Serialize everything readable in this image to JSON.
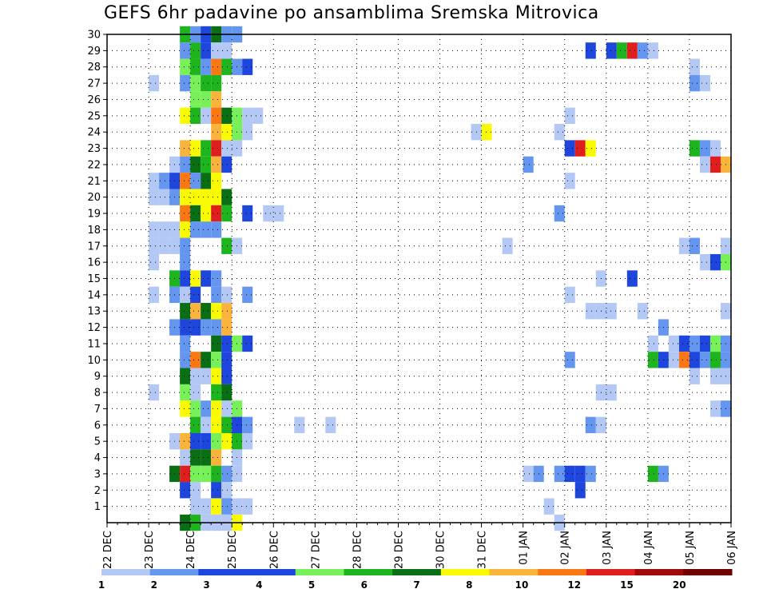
{
  "title": "GEFS 6hr padavine po ansamblima Sremska Mitrovica",
  "chart_data": {
    "type": "heatmap",
    "title": "GEFS 6hr padavine po ansamblima Sremska Mitrovica",
    "xlabel": "",
    "ylabel": "",
    "x_tick_labels": [
      "22 DEC",
      "23 DEC",
      "24 DEC",
      "25 DEC",
      "26 DEC",
      "27 DEC",
      "28 DEC",
      "29 DEC",
      "30 DEC",
      "31 DEC",
      "01 JAN",
      "02 JAN",
      "03 JAN",
      "04 JAN",
      "05 JAN",
      "06 JAN"
    ],
    "y_tick_labels": [
      "1",
      "2",
      "3",
      "4",
      "5",
      "6",
      "7",
      "8",
      "9",
      "10",
      "11",
      "12",
      "13",
      "14",
      "15",
      "16",
      "17",
      "18",
      "19",
      "20",
      "21",
      "22",
      "23",
      "24",
      "25",
      "26",
      "27",
      "28",
      "29",
      "30"
    ],
    "x_range": [
      "22 DEC",
      "06 JAN"
    ],
    "y_range": [
      0,
      30
    ],
    "time_step_hours": 6,
    "grid": true,
    "legend": {
      "placement": "bottom",
      "labels": [
        "1",
        "2",
        "3",
        "4",
        "5",
        "6",
        "7",
        "8",
        "10",
        "12",
        "15",
        "20"
      ],
      "colors": [
        "#b4c8f5",
        "#6496f0",
        "#1e46dc",
        "#1e46dc",
        "#78f05a",
        "#1eb41e",
        "#0a6e14",
        "#fafa00",
        "#fab43c",
        "#fa7814",
        "#e11e1e",
        "#a00a0a",
        "#6e0000"
      ]
    },
    "cells": [
      [
        30,
        "23 DEC 18",
        5
      ],
      [
        30,
        "24 DEC 00",
        1
      ],
      [
        30,
        "24 DEC 06",
        2
      ],
      [
        30,
        "24 DEC 12",
        6
      ],
      [
        30,
        "24 DEC 18",
        1
      ],
      [
        30,
        "25 DEC 00",
        1
      ],
      [
        29,
        "23 DEC 18",
        1
      ],
      [
        29,
        "24 DEC 00",
        5
      ],
      [
        29,
        "24 DEC 06",
        3
      ],
      [
        29,
        "24 DEC 12",
        0
      ],
      [
        29,
        "24 DEC 18",
        0
      ],
      [
        29,
        "02 JAN 12",
        2
      ],
      [
        29,
        "03 JAN 00",
        2
      ],
      [
        29,
        "03 JAN 06",
        5
      ],
      [
        29,
        "03 JAN 12",
        10
      ],
      [
        29,
        "03 JAN 18",
        1
      ],
      [
        29,
        "04 JAN 00",
        0
      ],
      [
        28,
        "23 DEC 18",
        4
      ],
      [
        28,
        "24 DEC 00",
        5
      ],
      [
        28,
        "24 DEC 06",
        1
      ],
      [
        28,
        "24 DEC 12",
        9
      ],
      [
        28,
        "24 DEC 18",
        5
      ],
      [
        28,
        "25 DEC 00",
        1
      ],
      [
        28,
        "25 DEC 06",
        2
      ],
      [
        28,
        "05 JAN 00",
        0
      ],
      [
        27,
        "23 DEC 00",
        0
      ],
      [
        27,
        "23 DEC 18",
        1
      ],
      [
        27,
        "24 DEC 00",
        4
      ],
      [
        27,
        "24 DEC 06",
        5
      ],
      [
        27,
        "24 DEC 12",
        5
      ],
      [
        27,
        "05 JAN 00",
        1
      ],
      [
        27,
        "05 JAN 06",
        0
      ],
      [
        26,
        "24 DEC 00",
        4
      ],
      [
        26,
        "24 DEC 06",
        4
      ],
      [
        26,
        "24 DEC 12",
        8
      ],
      [
        25,
        "23 DEC 18",
        7
      ],
      [
        25,
        "24 DEC 00",
        5
      ],
      [
        25,
        "24 DEC 06",
        0
      ],
      [
        25,
        "24 DEC 12",
        9
      ],
      [
        25,
        "24 DEC 18",
        6
      ],
      [
        25,
        "25 DEC 00",
        4
      ],
      [
        25,
        "25 DEC 06",
        0
      ],
      [
        25,
        "25 DEC 12",
        0
      ],
      [
        25,
        "02 JAN 00",
        0
      ],
      [
        24,
        "24 DEC 12",
        8
      ],
      [
        24,
        "24 DEC 18",
        7
      ],
      [
        24,
        "25 DEC 00",
        4
      ],
      [
        24,
        "25 DEC 06",
        0
      ],
      [
        24,
        "30 DEC 18",
        0
      ],
      [
        24,
        "31 DEC 00",
        7
      ],
      [
        24,
        "01 JAN 18",
        0
      ],
      [
        23,
        "23 DEC 18",
        8
      ],
      [
        23,
        "24 DEC 00",
        7
      ],
      [
        23,
        "24 DEC 06",
        5
      ],
      [
        23,
        "24 DEC 12",
        10
      ],
      [
        23,
        "24 DEC 18",
        0
      ],
      [
        23,
        "25 DEC 00",
        0
      ],
      [
        23,
        "02 JAN 00",
        2
      ],
      [
        23,
        "02 JAN 06",
        10
      ],
      [
        23,
        "02 JAN 12",
        7
      ],
      [
        23,
        "05 JAN 00",
        5
      ],
      [
        23,
        "05 JAN 06",
        1
      ],
      [
        23,
        "05 JAN 12",
        0
      ],
      [
        22,
        "23 DEC 12",
        0
      ],
      [
        22,
        "23 DEC 18",
        1
      ],
      [
        22,
        "24 DEC 00",
        6
      ],
      [
        22,
        "24 DEC 06",
        5
      ],
      [
        22,
        "24 DEC 12",
        8
      ],
      [
        22,
        "24 DEC 18",
        2
      ],
      [
        22,
        "01 JAN 00",
        1
      ],
      [
        22,
        "05 JAN 06",
        0
      ],
      [
        22,
        "05 JAN 12",
        10
      ],
      [
        22,
        "05 JAN 18",
        8
      ],
      [
        21,
        "23 DEC 00",
        0
      ],
      [
        21,
        "23 DEC 06",
        1
      ],
      [
        21,
        "23 DEC 12",
        2
      ],
      [
        21,
        "23 DEC 18",
        9
      ],
      [
        21,
        "24 DEC 00",
        1
      ],
      [
        21,
        "24 DEC 06",
        6
      ],
      [
        21,
        "24 DEC 12",
        7
      ],
      [
        21,
        "02 JAN 00",
        0
      ],
      [
        20,
        "23 DEC 00",
        0
      ],
      [
        20,
        "23 DEC 06",
        0
      ],
      [
        20,
        "23 DEC 12",
        1
      ],
      [
        20,
        "23 DEC 18",
        7
      ],
      [
        20,
        "24 DEC 00",
        7
      ],
      [
        20,
        "24 DEC 06",
        7
      ],
      [
        20,
        "24 DEC 12",
        7
      ],
      [
        20,
        "24 DEC 18",
        6
      ],
      [
        19,
        "23 DEC 18",
        9
      ],
      [
        19,
        "24 DEC 00",
        6
      ],
      [
        19,
        "24 DEC 06",
        7
      ],
      [
        19,
        "24 DEC 12",
        10
      ],
      [
        19,
        "24 DEC 18",
        5
      ],
      [
        19,
        "25 DEC 06",
        2
      ],
      [
        19,
        "25 DEC 18",
        0
      ],
      [
        19,
        "26 DEC 00",
        0
      ],
      [
        19,
        "01 JAN 18",
        1
      ],
      [
        18,
        "23 DEC 00",
        0
      ],
      [
        18,
        "23 DEC 06",
        0
      ],
      [
        18,
        "23 DEC 12",
        0
      ],
      [
        18,
        "23 DEC 18",
        7
      ],
      [
        18,
        "24 DEC 00",
        1
      ],
      [
        18,
        "24 DEC 06",
        1
      ],
      [
        18,
        "24 DEC 12",
        1
      ],
      [
        17,
        "23 DEC 00",
        0
      ],
      [
        17,
        "23 DEC 06",
        0
      ],
      [
        17,
        "23 DEC 12",
        0
      ],
      [
        17,
        "23 DEC 18",
        1
      ],
      [
        17,
        "24 DEC 18",
        5
      ],
      [
        17,
        "25 DEC 00",
        0
      ],
      [
        17,
        "31 DEC 12",
        0
      ],
      [
        17,
        "04 JAN 18",
        0
      ],
      [
        17,
        "05 JAN 00",
        1
      ],
      [
        17,
        "05 JAN 18",
        0
      ],
      [
        16,
        "23 DEC 00",
        0
      ],
      [
        16,
        "23 DEC 18",
        1
      ],
      [
        16,
        "05 JAN 06",
        0
      ],
      [
        16,
        "05 JAN 12",
        2
      ],
      [
        16,
        "05 JAN 18",
        4
      ],
      [
        15,
        "23 DEC 12",
        5
      ],
      [
        15,
        "23 DEC 18",
        2
      ],
      [
        15,
        "24 DEC 00",
        7
      ],
      [
        15,
        "24 DEC 06",
        2
      ],
      [
        15,
        "24 DEC 12",
        1
      ],
      [
        15,
        "02 JAN 18",
        0
      ],
      [
        15,
        "03 JAN 12",
        2
      ],
      [
        14,
        "23 DEC 00",
        0
      ],
      [
        14,
        "23 DEC 12",
        1
      ],
      [
        14,
        "23 DEC 18",
        0
      ],
      [
        14,
        "24 DEC 00",
        2
      ],
      [
        14,
        "24 DEC 12",
        1
      ],
      [
        14,
        "24 DEC 18",
        0
      ],
      [
        14,
        "25 DEC 06",
        1
      ],
      [
        14,
        "02 JAN 00",
        0
      ],
      [
        13,
        "23 DEC 18",
        6
      ],
      [
        13,
        "24 DEC 00",
        8
      ],
      [
        13,
        "24 DEC 06",
        6
      ],
      [
        13,
        "24 DEC 12",
        7
      ],
      [
        13,
        "24 DEC 18",
        8
      ],
      [
        13,
        "02 JAN 12",
        0
      ],
      [
        13,
        "02 JAN 18",
        0
      ],
      [
        13,
        "03 JAN 00",
        0
      ],
      [
        13,
        "03 JAN 18",
        0
      ],
      [
        13,
        "05 JAN 18",
        0
      ],
      [
        12,
        "23 DEC 12",
        1
      ],
      [
        12,
        "23 DEC 18",
        2
      ],
      [
        12,
        "24 DEC 00",
        2
      ],
      [
        12,
        "24 DEC 06",
        1
      ],
      [
        12,
        "24 DEC 12",
        1
      ],
      [
        12,
        "24 DEC 18",
        8
      ],
      [
        12,
        "04 JAN 06",
        1
      ],
      [
        11,
        "23 DEC 18",
        1
      ],
      [
        11,
        "24 DEC 12",
        6
      ],
      [
        11,
        "24 DEC 18",
        2
      ],
      [
        11,
        "25 DEC 00",
        4
      ],
      [
        11,
        "25 DEC 06",
        2
      ],
      [
        11,
        "04 JAN 00",
        0
      ],
      [
        11,
        "04 JAN 12",
        0
      ],
      [
        11,
        "04 JAN 18",
        2
      ],
      [
        11,
        "05 JAN 00",
        1
      ],
      [
        11,
        "05 JAN 06",
        2
      ],
      [
        11,
        "05 JAN 12",
        4
      ],
      [
        11,
        "05 JAN 18",
        1
      ],
      [
        10,
        "23 DEC 18",
        1
      ],
      [
        10,
        "24 DEC 00",
        9
      ],
      [
        10,
        "24 DEC 06",
        6
      ],
      [
        10,
        "24 DEC 12",
        4
      ],
      [
        10,
        "24 DEC 18",
        2
      ],
      [
        10,
        "02 JAN 00",
        1
      ],
      [
        10,
        "04 JAN 00",
        5
      ],
      [
        10,
        "04 JAN 06",
        2
      ],
      [
        10,
        "04 JAN 12",
        0
      ],
      [
        10,
        "04 JAN 18",
        9
      ],
      [
        10,
        "05 JAN 00",
        2
      ],
      [
        10,
        "05 JAN 06",
        1
      ],
      [
        10,
        "05 JAN 12",
        5
      ],
      [
        10,
        "05 JAN 18",
        1
      ],
      [
        9,
        "23 DEC 18",
        6
      ],
      [
        9,
        "24 DEC 00",
        0
      ],
      [
        9,
        "24 DEC 06",
        0
      ],
      [
        9,
        "24 DEC 12",
        7
      ],
      [
        9,
        "24 DEC 18",
        2
      ],
      [
        9,
        "05 JAN 00",
        0
      ],
      [
        9,
        "05 JAN 12",
        0
      ],
      [
        9,
        "05 JAN 18",
        0
      ],
      [
        8,
        "23 DEC 00",
        0
      ],
      [
        8,
        "23 DEC 18",
        4
      ],
      [
        8,
        "24 DEC 00",
        0
      ],
      [
        8,
        "24 DEC 12",
        5
      ],
      [
        8,
        "24 DEC 18",
        6
      ],
      [
        8,
        "02 JAN 18",
        0
      ],
      [
        8,
        "03 JAN 00",
        0
      ],
      [
        7,
        "23 DEC 18",
        7
      ],
      [
        7,
        "24 DEC 00",
        4
      ],
      [
        7,
        "24 DEC 06",
        1
      ],
      [
        7,
        "24 DEC 12",
        7
      ],
      [
        7,
        "24 DEC 18",
        0
      ],
      [
        7,
        "25 DEC 00",
        4
      ],
      [
        7,
        "05 JAN 12",
        0
      ],
      [
        7,
        "05 JAN 18",
        1
      ],
      [
        6,
        "24 DEC 00",
        5
      ],
      [
        6,
        "24 DEC 06",
        0
      ],
      [
        6,
        "24 DEC 12",
        7
      ],
      [
        6,
        "24 DEC 18",
        5
      ],
      [
        6,
        "25 DEC 00",
        2
      ],
      [
        6,
        "25 DEC 06",
        1
      ],
      [
        6,
        "26 DEC 12",
        0
      ],
      [
        6,
        "27 DEC 06",
        0
      ],
      [
        6,
        "02 JAN 12",
        1
      ],
      [
        6,
        "02 JAN 18",
        0
      ],
      [
        5,
        "23 DEC 12",
        0
      ],
      [
        5,
        "23 DEC 18",
        8
      ],
      [
        5,
        "24 DEC 00",
        2
      ],
      [
        5,
        "24 DEC 06",
        2
      ],
      [
        5,
        "24 DEC 12",
        4
      ],
      [
        5,
        "24 DEC 18",
        7
      ],
      [
        5,
        "25 DEC 00",
        5
      ],
      [
        5,
        "25 DEC 06",
        0
      ],
      [
        4,
        "23 DEC 18",
        0
      ],
      [
        4,
        "24 DEC 00",
        6
      ],
      [
        4,
        "24 DEC 06",
        6
      ],
      [
        4,
        "24 DEC 12",
        8
      ],
      [
        4,
        "25 DEC 00",
        0
      ],
      [
        3,
        "23 DEC 12",
        6
      ],
      [
        3,
        "23 DEC 18",
        10
      ],
      [
        3,
        "24 DEC 00",
        4
      ],
      [
        3,
        "24 DEC 06",
        4
      ],
      [
        3,
        "24 DEC 12",
        5
      ],
      [
        3,
        "24 DEC 18",
        1
      ],
      [
        3,
        "25 DEC 00",
        0
      ],
      [
        3,
        "01 JAN 00",
        0
      ],
      [
        3,
        "01 JAN 06",
        1
      ],
      [
        3,
        "01 JAN 18",
        1
      ],
      [
        3,
        "02 JAN 00",
        2
      ],
      [
        3,
        "02 JAN 06",
        2
      ],
      [
        3,
        "02 JAN 12",
        1
      ],
      [
        3,
        "04 JAN 00",
        5
      ],
      [
        3,
        "04 JAN 06",
        1
      ],
      [
        2,
        "23 DEC 18",
        2
      ],
      [
        2,
        "24 DEC 00",
        0
      ],
      [
        2,
        "24 DEC 12",
        2
      ],
      [
        2,
        "24 DEC 18",
        0
      ],
      [
        2,
        "02 JAN 06",
        2
      ],
      [
        1,
        "24 DEC 00",
        0
      ],
      [
        1,
        "24 DEC 06",
        0
      ],
      [
        1,
        "24 DEC 12",
        7
      ],
      [
        1,
        "24 DEC 18",
        1
      ],
      [
        1,
        "25 DEC 00",
        0
      ],
      [
        1,
        "25 DEC 06",
        0
      ],
      [
        1,
        "01 JAN 12",
        0
      ],
      [
        0,
        "23 DEC 18",
        6
      ],
      [
        0,
        "24 DEC 00",
        5
      ],
      [
        0,
        "24 DEC 06",
        0
      ],
      [
        0,
        "24 DEC 12",
        0
      ],
      [
        0,
        "24 DEC 18",
        0
      ],
      [
        0,
        "25 DEC 00",
        7
      ],
      [
        0,
        "01 JAN 18",
        0
      ]
    ]
  }
}
